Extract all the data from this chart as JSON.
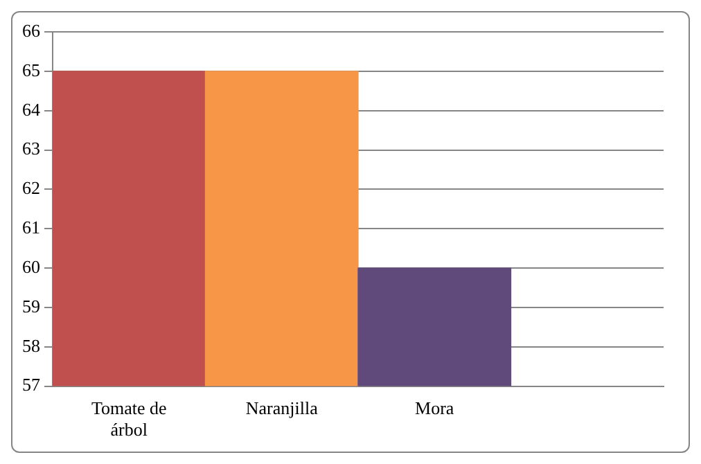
{
  "chart_data": {
    "type": "bar",
    "categories": [
      "Tomate de árbol",
      "Naranjilla",
      "Mora",
      null
    ],
    "values": [
      65,
      65,
      60,
      null
    ],
    "colors": [
      "#c0504d",
      "#f79646",
      "#604a7b",
      "#000000"
    ],
    "ylim": [
      57,
      66
    ],
    "yticks": [
      57,
      58,
      59,
      60,
      61,
      62,
      63,
      64,
      65,
      66
    ],
    "grid": "y",
    "legend": false
  }
}
